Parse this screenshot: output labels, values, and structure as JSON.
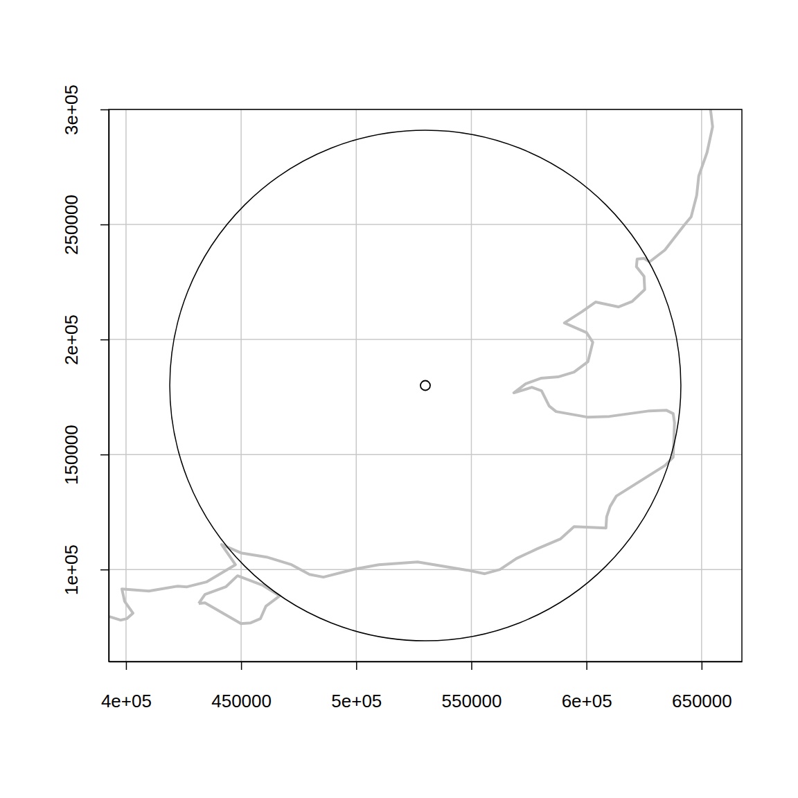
{
  "chart_data": {
    "type": "map",
    "xlim": [
      392500,
      667500
    ],
    "ylim": [
      60000,
      300000
    ],
    "xticks": [
      {
        "value": 400000,
        "label": "4e+05"
      },
      450000,
      {
        "value": 500000,
        "label": "5e+05"
      },
      550000,
      {
        "value": 600000,
        "label": "6e+05"
      },
      650000
    ],
    "yticks": [
      {
        "value": 100000,
        "label": "1e+05"
      },
      150000,
      {
        "value": 200000,
        "label": "2e+05"
      },
      250000,
      {
        "value": 300000,
        "label": "3e+05"
      }
    ],
    "grid": true,
    "series": [
      {
        "type": "line",
        "color": "#bebebe",
        "x": [
          653875,
          654777,
          652370,
          648770,
          647870,
          645460,
          642450,
          634030,
          627410,
          625000,
          622000,
          621690,
          625000,
          625300,
          619890,
          613870,
          603940,
          597950,
          590410,
          600030,
          602740,
          600640,
          594600,
          587680,
          580180,
          573560,
          568450,
          576270,
          580480,
          583790,
          586800,
          600340,
          609960,
          627410,
          634630,
          637640,
          638230,
          637640,
          634030,
          612970,
          610270,
          608760,
          608460,
          594620,
          588610,
          578680,
          569650,
          562430,
          555810,
          548290,
          526630,
          509790,
          499860,
          485720,
          479700,
          471880,
          461050,
          449920,
          441510,
          447530,
          434890,
          426470,
          422560,
          409930,
          398200,
          399400,
          403010,
          400300,
          397590,
          392780
        ],
        "y": [
          300000,
          292470,
          281320,
          271090,
          262650,
          253310,
          249700,
          238860,
          233740,
          235240,
          234940,
          231630,
          227410,
          221690,
          216570,
          214160,
          216270,
          212050,
          207230,
          203010,
          198790,
          190360,
          185840,
          183730,
          183130,
          180720,
          176800,
          179210,
          177710,
          171080,
          168670,
          166260,
          166560,
          168970,
          169270,
          167760,
          163850,
          148790,
          145180,
          131930,
          127410,
          122890,
          118070,
          118670,
          113250,
          109040,
          104820,
          100000,
          98190,
          99700,
          103310,
          102110,
          100300,
          96690,
          97890,
          102110,
          105420,
          107230,
          110840,
          102110,
          94580,
          92470,
          92770,
          90660,
          91570,
          86150,
          81020,
          78620,
          78010,
          79520
        ]
      },
      {
        "type": "line",
        "color": "#bebebe",
        "x": [
          431580,
          434290,
          443320,
          448430,
          459560,
          466780,
          460760,
          458360,
          454140,
          449930,
          434290,
          431580
        ],
        "y": [
          85240,
          89160,
          92470,
          97290,
          93070,
          88550,
          84040,
          78610,
          76810,
          76510,
          85540,
          85240
        ]
      }
    ],
    "circle": {
      "x": 530000,
      "y": 180000,
      "radius": 111000,
      "color": "#000000"
    },
    "point": {
      "x": 530000,
      "y": 180000,
      "marker": "circle",
      "color": "#000000"
    }
  }
}
